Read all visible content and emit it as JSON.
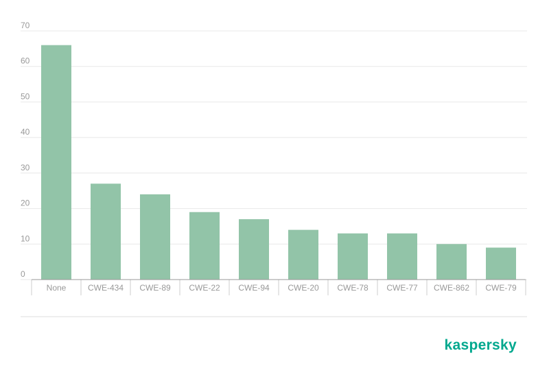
{
  "chart_data": {
    "type": "bar",
    "categories": [
      "None",
      "CWE-434",
      "CWE-89",
      "CWE-22",
      "CWE-94",
      "CWE-20",
      "CWE-78",
      "CWE-77",
      "CWE-862",
      "CWE-79"
    ],
    "values": [
      66,
      27,
      24,
      19,
      17,
      14,
      13,
      13,
      10,
      9
    ],
    "color": "#92c4a8",
    "ylim": [
      0,
      70
    ],
    "yticks": [
      0,
      10,
      20,
      30,
      40,
      50,
      60,
      70
    ],
    "grid": true
  },
  "logo": "kaspersky"
}
